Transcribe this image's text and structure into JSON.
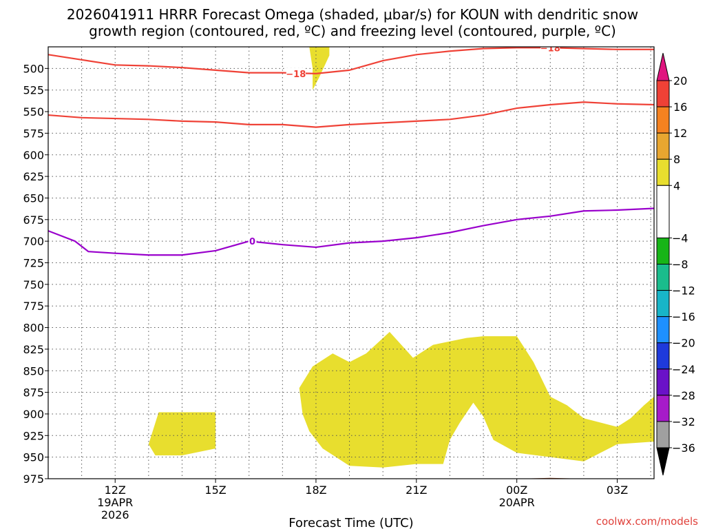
{
  "chart_data": {
    "type": "time-height",
    "title_line1": "2026041911 HRRR Forecast Omega (shaded, μbar/s) for KOUN with dendritic snow",
    "title_line2": "growth region (contoured, red, ºC) and freezing level (contoured, purple, ºC)",
    "xlabel": "Forecast Time (UTC)",
    "credit": "coolwx.com/models",
    "xlim": [
      10.0,
      28.1
    ],
    "ylim": [
      975,
      475
    ],
    "y_ticks": [
      500,
      525,
      550,
      575,
      600,
      625,
      650,
      675,
      700,
      725,
      750,
      775,
      800,
      825,
      850,
      875,
      900,
      925,
      950,
      975
    ],
    "x_ticks": [
      {
        "x": 12,
        "lines": [
          "12Z",
          "19APR",
          "2026"
        ]
      },
      {
        "x": 15,
        "lines": [
          "15Z"
        ]
      },
      {
        "x": 18,
        "lines": [
          "18Z"
        ]
      },
      {
        "x": 21,
        "lines": [
          "21Z"
        ]
      },
      {
        "x": 24,
        "lines": [
          "00Z",
          "20APR"
        ]
      },
      {
        "x": 27,
        "lines": [
          "03Z"
        ]
      }
    ],
    "contours": [
      {
        "name": "dgz-minus18",
        "color": "#ef4136",
        "label": "−18",
        "points": [
          [
            10,
            484
          ],
          [
            11,
            490
          ],
          [
            12,
            496
          ],
          [
            13,
            497
          ],
          [
            14,
            499
          ],
          [
            15,
            502
          ],
          [
            16,
            505
          ],
          [
            17,
            505
          ],
          [
            18,
            506
          ],
          [
            19,
            502
          ],
          [
            20,
            491
          ],
          [
            21,
            484
          ],
          [
            22,
            480
          ],
          [
            23,
            477
          ],
          [
            24,
            476
          ],
          [
            25,
            476
          ],
          [
            26,
            477
          ],
          [
            27,
            478
          ],
          [
            28.1,
            478
          ]
        ],
        "label_at": [
          17.4,
          506
        ]
      },
      {
        "name": "dgz-minus18-top",
        "color": "#ef4136",
        "label": "−18",
        "points": [],
        "label_at": [
          25.0,
          476
        ]
      },
      {
        "name": "dgz-minus12",
        "color": "#ef4136",
        "label": "",
        "points": [
          [
            10,
            554
          ],
          [
            11,
            557
          ],
          [
            12,
            558
          ],
          [
            13,
            559
          ],
          [
            14,
            561
          ],
          [
            15,
            562
          ],
          [
            16,
            565
          ],
          [
            17,
            565
          ],
          [
            18,
            568
          ],
          [
            19,
            565
          ],
          [
            20,
            563
          ],
          [
            21,
            561
          ],
          [
            22,
            559
          ],
          [
            23,
            554
          ],
          [
            24,
            546
          ],
          [
            25,
            542
          ],
          [
            26,
            539
          ],
          [
            27,
            541
          ],
          [
            28.1,
            542
          ]
        ]
      },
      {
        "name": "freezing-level-0",
        "color": "#9900cc",
        "label": "0",
        "points": [
          [
            10,
            688
          ],
          [
            10.8,
            700
          ],
          [
            11.2,
            712
          ],
          [
            12,
            714
          ],
          [
            13,
            716
          ],
          [
            14,
            716
          ],
          [
            15,
            711
          ],
          [
            16,
            700
          ],
          [
            17,
            704
          ],
          [
            18,
            707
          ],
          [
            19,
            702
          ],
          [
            20,
            700
          ],
          [
            21,
            696
          ],
          [
            22,
            690
          ],
          [
            23,
            682
          ],
          [
            24,
            675
          ],
          [
            25,
            671
          ],
          [
            26,
            665
          ],
          [
            27,
            664
          ],
          [
            28.1,
            662
          ]
        ],
        "label_at": [
          16.1,
          700
        ]
      }
    ],
    "shaded_regions": [
      {
        "name": "omega-4-8-upper",
        "range": "4 to 8",
        "color": "#e8de2e",
        "points": [
          [
            17.8,
            475
          ],
          [
            18.4,
            475
          ],
          [
            18.4,
            485
          ],
          [
            18.1,
            510
          ],
          [
            17.9,
            525
          ],
          [
            17.9,
            500
          ]
        ]
      },
      {
        "name": "omega-4-8-lower",
        "range": "4 to 8",
        "color": "#e8de2e",
        "points": [
          [
            17.5,
            870
          ],
          [
            17.9,
            845
          ],
          [
            18.5,
            830
          ],
          [
            19.0,
            840
          ],
          [
            19.5,
            830
          ],
          [
            20.2,
            805
          ],
          [
            20.9,
            835
          ],
          [
            21.5,
            820
          ],
          [
            22.5,
            812
          ],
          [
            23.0,
            810
          ],
          [
            24.0,
            810
          ],
          [
            24.5,
            840
          ],
          [
            25.0,
            880
          ],
          [
            25.5,
            890
          ],
          [
            26.0,
            905
          ],
          [
            26.5,
            910
          ],
          [
            27.0,
            915
          ],
          [
            27.4,
            905
          ],
          [
            27.8,
            890
          ],
          [
            28.1,
            880
          ],
          [
            28.1,
            932
          ],
          [
            27.0,
            935
          ],
          [
            26.5,
            945
          ],
          [
            26.0,
            955
          ],
          [
            25.0,
            950
          ],
          [
            24.0,
            945
          ],
          [
            23.3,
            930
          ],
          [
            23.0,
            903
          ],
          [
            22.7,
            887
          ],
          [
            22.3,
            910
          ],
          [
            22.0,
            930
          ],
          [
            21.8,
            958
          ],
          [
            21.0,
            958
          ],
          [
            20.0,
            962
          ],
          [
            19.0,
            960
          ],
          [
            18.2,
            940
          ],
          [
            17.8,
            920
          ],
          [
            17.6,
            900
          ]
        ]
      },
      {
        "name": "omega-4-8-small",
        "range": "4 to 8",
        "color": "#e8de2e",
        "points": [
          [
            13.3,
            898
          ],
          [
            14.0,
            898
          ],
          [
            14.7,
            898
          ],
          [
            15.0,
            898
          ],
          [
            15.0,
            940
          ],
          [
            14.0,
            948
          ],
          [
            13.2,
            948
          ],
          [
            13.0,
            935
          ]
        ]
      }
    ],
    "terrain": {
      "name": "terrain",
      "color": "#a0522d",
      "points": [
        [
          10,
          978
        ],
        [
          21,
          978
        ],
        [
          23,
          976
        ],
        [
          24,
          975
        ],
        [
          25,
          974
        ],
        [
          26,
          975
        ],
        [
          27,
          976
        ],
        [
          28.1,
          977
        ]
      ]
    },
    "colorbar": {
      "tick_labels": [
        "20",
        "16",
        "12",
        "8",
        "4",
        "−4",
        "−8",
        "−12",
        "−16",
        "−20",
        "−24",
        "−28",
        "−32",
        "−36"
      ],
      "tick_values": [
        20,
        16,
        12,
        8,
        4,
        -4,
        -8,
        -12,
        -16,
        -20,
        -24,
        -28,
        -32,
        -36
      ],
      "bins": [
        {
          "from": 20,
          "to": 16,
          "color": "#ef4136"
        },
        {
          "from": 16,
          "to": 12,
          "color": "#f58220"
        },
        {
          "from": 12,
          "to": 8,
          "color": "#e8a630"
        },
        {
          "from": 8,
          "to": 4,
          "color": "#e8de2e"
        },
        {
          "from": 4,
          "to": -4,
          "color": "#ffffff"
        },
        {
          "from": -4,
          "to": -8,
          "color": "#17b517"
        },
        {
          "from": -8,
          "to": -12,
          "color": "#1abc8c"
        },
        {
          "from": -12,
          "to": -16,
          "color": "#18b5c8"
        },
        {
          "from": -16,
          "to": -20,
          "color": "#1e90ff"
        },
        {
          "from": -20,
          "to": -24,
          "color": "#1e3adc"
        },
        {
          "from": -24,
          "to": -28,
          "color": "#6a12c8"
        },
        {
          "from": -28,
          "to": -32,
          "color": "#a61bc9"
        },
        {
          "from": -32,
          "to": -36,
          "color": "#a0a0a0"
        }
      ],
      "top_arrow_color": "#e0157f",
      "bottom_arrow_color": "#000000"
    }
  }
}
